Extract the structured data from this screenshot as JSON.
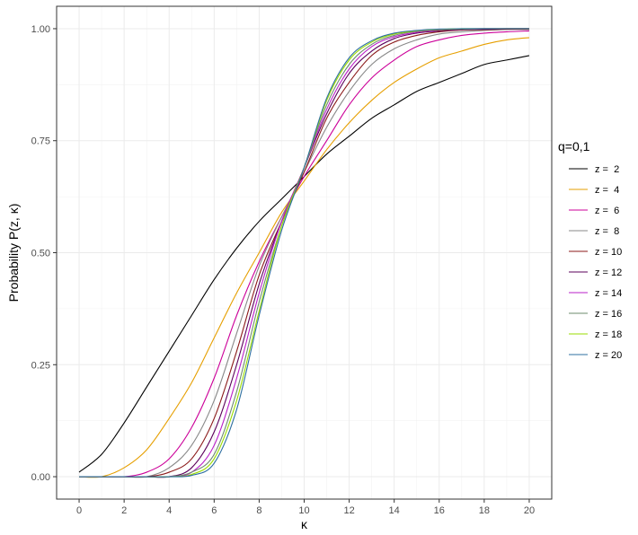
{
  "chart_data": {
    "type": "line",
    "title": "",
    "xlabel": "κ",
    "ylabel": "Probability  P(z, κ)",
    "xlim": [
      -1,
      21
    ],
    "ylim": [
      -0.05,
      1.05
    ],
    "x_ticks": [
      0,
      2,
      4,
      6,
      8,
      10,
      12,
      14,
      16,
      18,
      20
    ],
    "x_tick_labels": [
      "0",
      "2",
      "4",
      "6",
      "8",
      "10",
      "12",
      "14",
      "16",
      "18",
      "20"
    ],
    "y_ticks": [
      0,
      0.25,
      0.5,
      0.75,
      1.0
    ],
    "y_tick_labels": [
      "0.00",
      "0.25",
      "0.50",
      "0.75",
      "1.00"
    ],
    "grid": true,
    "legend": {
      "title": "q=0,1",
      "position": "right"
    },
    "x": [
      0,
      1,
      2,
      3,
      4,
      5,
      6,
      7,
      8,
      9,
      10,
      11,
      12,
      13,
      14,
      15,
      16,
      17,
      18,
      19,
      20
    ],
    "series": [
      {
        "name": "z =  2",
        "color": "#000000",
        "values": [
          0.01,
          0.05,
          0.12,
          0.2,
          0.28,
          0.36,
          0.44,
          0.51,
          0.57,
          0.62,
          0.67,
          0.72,
          0.76,
          0.8,
          0.83,
          0.86,
          0.88,
          0.9,
          0.92,
          0.93,
          0.94
        ]
      },
      {
        "name": "z =  4",
        "color": "#E69F00",
        "values": [
          0.0,
          0.0,
          0.02,
          0.06,
          0.13,
          0.21,
          0.31,
          0.41,
          0.5,
          0.59,
          0.66,
          0.73,
          0.79,
          0.84,
          0.88,
          0.91,
          0.935,
          0.95,
          0.965,
          0.975,
          0.98
        ]
      },
      {
        "name": "z =  6",
        "color": "#CC0099",
        "values": [
          0.0,
          0.0,
          0.0,
          0.01,
          0.04,
          0.11,
          0.22,
          0.36,
          0.48,
          0.58,
          0.67,
          0.75,
          0.83,
          0.89,
          0.93,
          0.96,
          0.975,
          0.985,
          0.99,
          0.993,
          0.995
        ]
      },
      {
        "name": "z =  8",
        "color": "#888888",
        "values": [
          0.0,
          0.0,
          0.0,
          0.0,
          0.02,
          0.07,
          0.17,
          0.32,
          0.47,
          0.58,
          0.68,
          0.78,
          0.86,
          0.92,
          0.955,
          0.975,
          0.988,
          0.993,
          0.996,
          0.998,
          0.998
        ]
      },
      {
        "name": "z = 10",
        "color": "#8B1A1A",
        "values": [
          0.0,
          0.0,
          0.0,
          0.0,
          0.01,
          0.04,
          0.13,
          0.28,
          0.45,
          0.57,
          0.68,
          0.8,
          0.88,
          0.94,
          0.97,
          0.985,
          0.993,
          0.997,
          0.998,
          0.999,
          0.999
        ]
      },
      {
        "name": "z = 12",
        "color": "#5B005B",
        "values": [
          0.0,
          0.0,
          0.0,
          0.0,
          0.0,
          0.02,
          0.1,
          0.25,
          0.43,
          0.57,
          0.69,
          0.81,
          0.9,
          0.95,
          0.978,
          0.99,
          0.995,
          0.998,
          0.999,
          1.0,
          1.0
        ]
      },
      {
        "name": "z = 14",
        "color": "#B91FC8",
        "values": [
          0.0,
          0.0,
          0.0,
          0.0,
          0.0,
          0.01,
          0.07,
          0.22,
          0.41,
          0.57,
          0.69,
          0.82,
          0.91,
          0.96,
          0.982,
          0.992,
          0.997,
          0.999,
          1.0,
          1.0,
          1.0
        ]
      },
      {
        "name": "z = 16",
        "color": "#6E8B6E",
        "values": [
          0.0,
          0.0,
          0.0,
          0.0,
          0.0,
          0.01,
          0.05,
          0.19,
          0.39,
          0.56,
          0.69,
          0.83,
          0.92,
          0.965,
          0.985,
          0.994,
          0.998,
          0.999,
          1.0,
          1.0,
          1.0
        ]
      },
      {
        "name": "z = 18",
        "color": "#99DD00",
        "values": [
          0.0,
          0.0,
          0.0,
          0.0,
          0.0,
          0.005,
          0.04,
          0.17,
          0.37,
          0.56,
          0.69,
          0.84,
          0.93,
          0.97,
          0.988,
          0.995,
          0.998,
          1.0,
          1.0,
          1.0,
          1.0
        ]
      },
      {
        "name": "z = 20",
        "color": "#2E6FA0",
        "values": [
          0.0,
          0.0,
          0.0,
          0.0,
          0.0,
          0.003,
          0.03,
          0.15,
          0.36,
          0.55,
          0.69,
          0.845,
          0.935,
          0.973,
          0.99,
          0.996,
          0.999,
          1.0,
          1.0,
          1.0,
          1.0
        ]
      }
    ]
  }
}
